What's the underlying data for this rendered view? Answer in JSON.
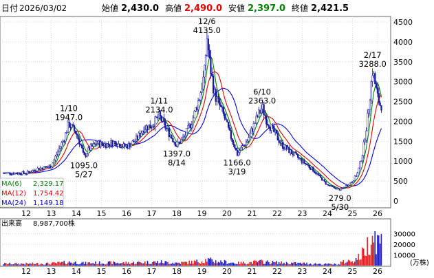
{
  "header": {
    "date_label": "日付",
    "date": "2026/03/02",
    "open_label": "始値",
    "open": "2,430.0",
    "high_label": "高値",
    "high": "2,490.0",
    "low_label": "安値",
    "low": "2,397.0",
    "close_label": "終値",
    "close": "2,421.5"
  },
  "colors": {
    "candle": "#1a1aa0",
    "ma6": "#008000",
    "ma12": "#e00000",
    "ma24": "#0000e0",
    "high": "#e00000",
    "low": "#008000",
    "volume_up": "#e02020",
    "volume_down": "#2020c0"
  },
  "chart_data": {
    "type": "candlestick",
    "x_ticks": [
      "12",
      "13",
      "14",
      "15",
      "16",
      "17",
      "18",
      "19",
      "20",
      "21",
      "22",
      "23",
      "24",
      "25",
      "26"
    ],
    "y_ticks": [
      "0",
      "500",
      "1000",
      "1500",
      "2000",
      "2500",
      "3000",
      "3500",
      "4000",
      "4500"
    ],
    "ylim": [
      0,
      4500
    ],
    "price_path": [
      [
        12.0,
        700
      ],
      [
        12.5,
        820
      ],
      [
        13.0,
        870
      ],
      [
        13.3,
        1300
      ],
      [
        13.5,
        1550
      ],
      [
        13.7,
        1947
      ],
      [
        14.0,
        1700
      ],
      [
        14.2,
        1350
      ],
      [
        14.3,
        1095
      ],
      [
        14.5,
        1300
      ],
      [
        14.8,
        1450
      ],
      [
        15.2,
        1420
      ],
      [
        15.5,
        1480
      ],
      [
        15.9,
        1370
      ],
      [
        16.1,
        1400
      ],
      [
        16.4,
        1550
      ],
      [
        16.7,
        1850
      ],
      [
        17.0,
        1900
      ],
      [
        17.3,
        2134
      ],
      [
        17.6,
        1800
      ],
      [
        17.9,
        1500
      ],
      [
        18.0,
        1397
      ],
      [
        18.3,
        1600
      ],
      [
        18.6,
        2000
      ],
      [
        18.9,
        2600
      ],
      [
        19.1,
        3200
      ],
      [
        19.2,
        4135
      ],
      [
        19.3,
        3500
      ],
      [
        19.5,
        2700
      ],
      [
        19.7,
        2400
      ],
      [
        19.9,
        2100
      ],
      [
        20.1,
        1700
      ],
      [
        20.3,
        1400
      ],
      [
        20.4,
        1166
      ],
      [
        20.6,
        1350
      ],
      [
        20.8,
        1500
      ],
      [
        21.0,
        1800
      ],
      [
        21.2,
        2100
      ],
      [
        21.4,
        2363
      ],
      [
        21.6,
        2000
      ],
      [
        21.9,
        1700
      ],
      [
        22.2,
        1400
      ],
      [
        22.5,
        1250
      ],
      [
        22.8,
        1100
      ],
      [
        23.1,
        950
      ],
      [
        23.4,
        800
      ],
      [
        23.7,
        600
      ],
      [
        24.0,
        400
      ],
      [
        24.3,
        320
      ],
      [
        24.5,
        279
      ],
      [
        24.8,
        400
      ],
      [
        25.0,
        500
      ],
      [
        25.2,
        700
      ],
      [
        25.4,
        1200
      ],
      [
        25.6,
        2100
      ],
      [
        25.7,
        2700
      ],
      [
        25.8,
        3288
      ],
      [
        26.0,
        2600
      ],
      [
        26.1,
        2421
      ]
    ],
    "annotations": [
      {
        "date": "1/10",
        "price": "1947.0",
        "pos": "above"
      },
      {
        "date": "5/27",
        "price": "1095.0",
        "pos": "below"
      },
      {
        "date": "1/11",
        "price": "2134.0",
        "pos": "above"
      },
      {
        "date": "8/14",
        "price": "1397.0",
        "pos": "below"
      },
      {
        "date": "12/6",
        "price": "4135.0",
        "pos": "above"
      },
      {
        "date": "3/19",
        "price": "1166.0",
        "pos": "below"
      },
      {
        "date": "6/10",
        "price": "2363.0",
        "pos": "above"
      },
      {
        "date": "5/30",
        "price": "279.0",
        "pos": "below"
      },
      {
        "date": "2/17",
        "price": "3288.0",
        "pos": "above"
      }
    ],
    "moving_averages": [
      {
        "name": "MA(6)",
        "value": "2,329.17"
      },
      {
        "name": "MA(12)",
        "value": "1,754.42"
      },
      {
        "name": "MA(24)",
        "value": "1,149.18"
      }
    ],
    "volume": {
      "label": "出来高",
      "value": "8,987,700株",
      "unit": "(万株)",
      "y_ticks": [
        "10000",
        "20000",
        "30000"
      ],
      "ylim": [
        0,
        40000
      ]
    }
  }
}
